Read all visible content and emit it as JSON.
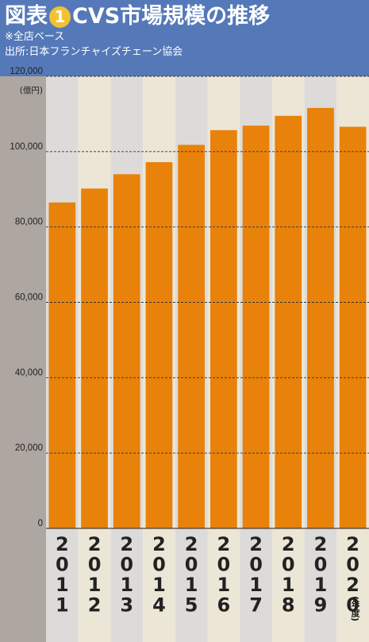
{
  "header": {
    "title_prefix": "図表",
    "badge_number": "1",
    "title_text": "CVS市場規模の推移",
    "note_basis": "※全店ベース",
    "note_source": "出所:日本フランチャイズチェーン協会"
  },
  "colors": {
    "header_bg": "#5579b8",
    "badge": "#f2c230",
    "bar": "#e8820a",
    "stripe_gray": "#dddbd9",
    "stripe_beige": "#ece6d6",
    "axis_panel": "#aea6a0"
  },
  "chart_data": {
    "type": "bar",
    "title": "CVS市場規模の推移",
    "unit_label": "(億円)",
    "year_unit_label": "(年度)",
    "categories": [
      "2011",
      "2012",
      "2013",
      "2014",
      "2015",
      "2016",
      "2017",
      "2018",
      "2019",
      "2020"
    ],
    "values": [
      86500,
      90200,
      94000,
      97200,
      101800,
      105700,
      106900,
      109500,
      111600,
      106600
    ],
    "ylim": [
      0,
      120000
    ],
    "y_ticks": [
      0,
      20000,
      40000,
      60000,
      80000,
      100000,
      120000
    ],
    "y_tick_labels": [
      "0",
      "20,000",
      "40,000",
      "60,000",
      "80,000",
      "100,000",
      "120,000"
    ],
    "grid": "dashed horizontal lines at ticks"
  }
}
